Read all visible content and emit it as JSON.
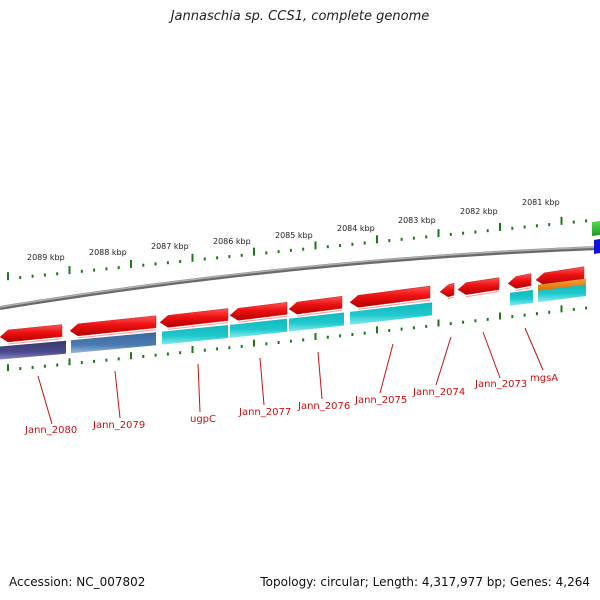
{
  "title": "Jannaschia sp. CCS1, complete genome",
  "footer": {
    "accession": "Accession: NC_007802",
    "summary": "Topology: circular; Length: 4,317,977 bp; Genes: 4,264"
  },
  "scale_labels": [
    "2089 kbp",
    "2088 kbp",
    "2087 kbp",
    "2086 kbp",
    "2085 kbp",
    "2084 kbp",
    "2083 kbp",
    "2082 kbp",
    "2081 kbp"
  ],
  "gene_labels": [
    "Jann_2080",
    "Jann_2079",
    "ugpC",
    "Jann_2077",
    "Jann_2076",
    "Jann_2075",
    "Jann_2074",
    "Jann_2073",
    "mgsA"
  ],
  "colors": {
    "backbone": "#888888",
    "forward_feature": "#ee1111",
    "scale_tick": "#1a7a1a",
    "label": "#cc1111",
    "cyan_feature": "#1ec8cc",
    "purple_feature": "#4a4a8c",
    "steel_feature": "#4a7ab0",
    "orange_feature": "#f08a10",
    "green_feature": "#33bb33",
    "blue_feature": "#1111dd"
  }
}
